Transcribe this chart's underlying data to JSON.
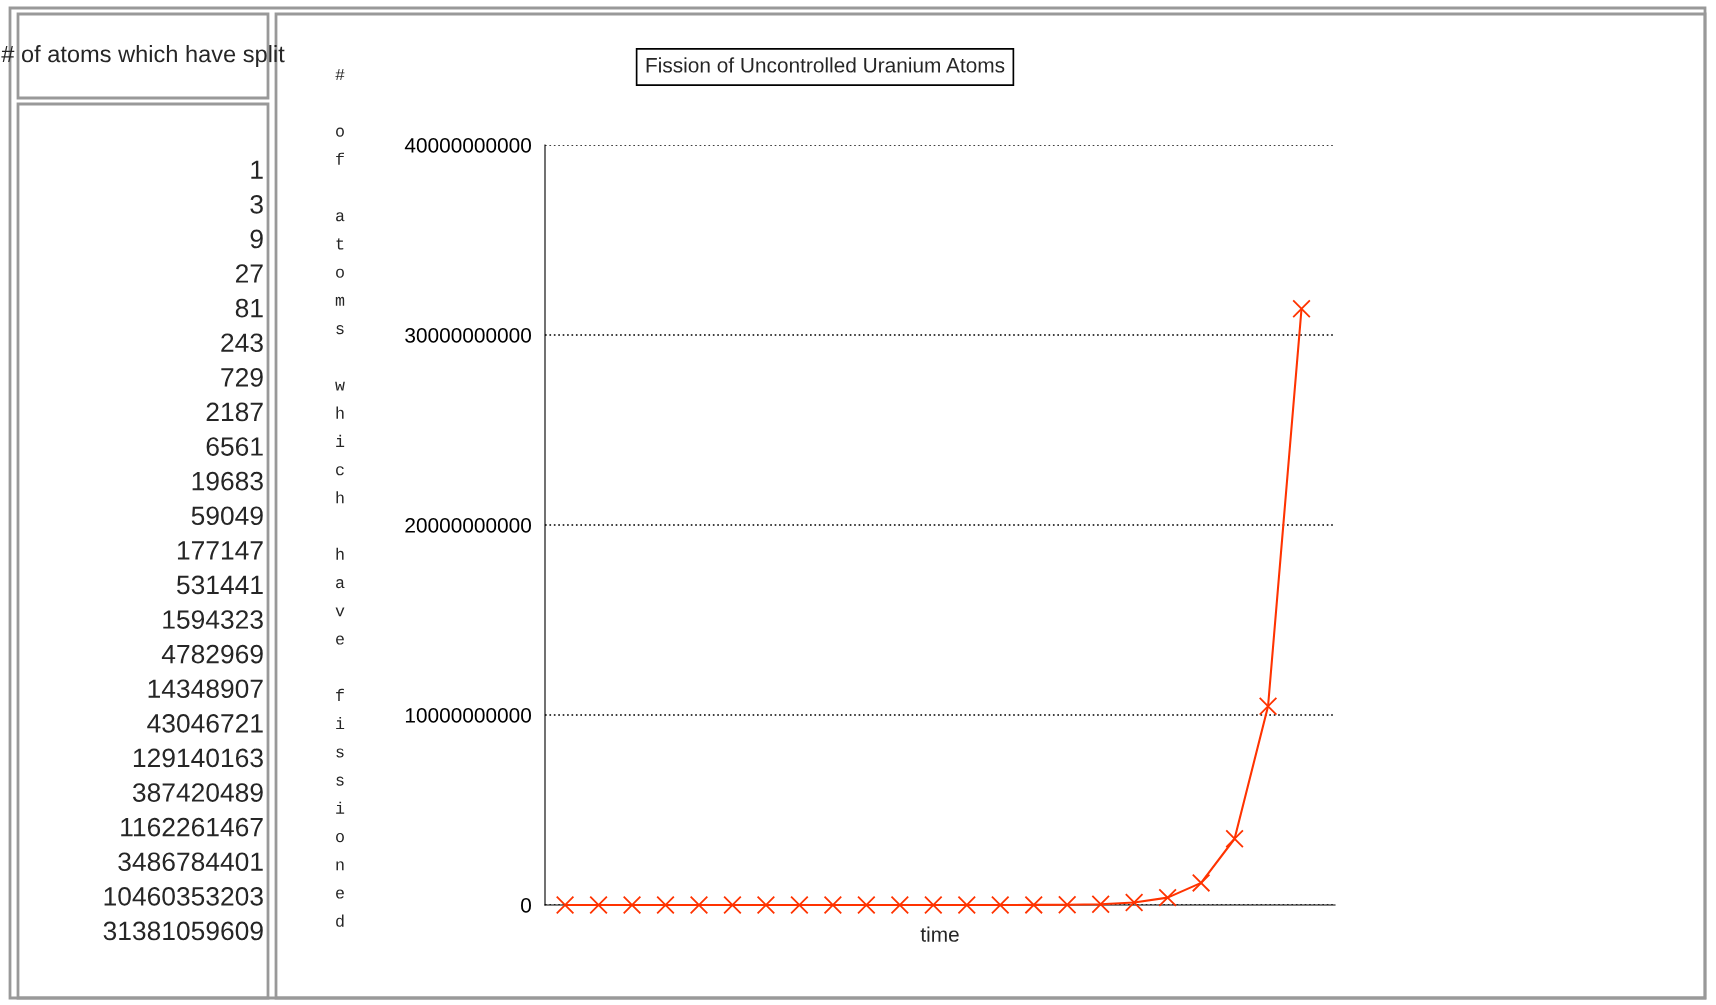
{
  "chart_data": [
    {
      "type": "other",
      "title": "# of atoms which have split",
      "annotations": [
        "1",
        "3",
        "9",
        "27",
        "81",
        "243",
        "729",
        "2187",
        "6561",
        "19683",
        "59049",
        "177147",
        "531441",
        "1594323",
        "4782969",
        "14348907",
        "43046721",
        "129140163",
        "387420489",
        "1162261467",
        "3486784401",
        "10460353203",
        "31381059609"
      ]
    },
    {
      "type": "line",
      "title": "Fission of Uncontrolled Uranium Atoms",
      "xlabel": "time",
      "ylabel": "# of atoms which have fissioned",
      "categories": [
        null,
        null,
        null,
        null,
        null,
        null,
        null,
        null,
        null,
        null,
        null,
        null,
        null,
        null,
        null,
        null,
        null,
        null,
        null,
        null,
        null,
        null,
        null
      ],
      "series": [
        {
          "color": "#ff3300",
          "values": [
            1,
            3,
            9,
            27,
            81,
            243,
            729,
            2187,
            6561,
            19683,
            59049,
            177147,
            531441,
            1594323,
            4782969,
            14348907,
            43046721,
            129140163,
            387420489,
            1162261467,
            3486784401,
            10460353203,
            31381059609
          ]
        }
      ],
      "ylim": [
        0,
        40000000000
      ],
      "yticks": [
        0,
        10000000000,
        20000000000,
        30000000000,
        40000000000
      ],
      "grid": "y",
      "marker": "cross",
      "line_style": "solid"
    }
  ]
}
